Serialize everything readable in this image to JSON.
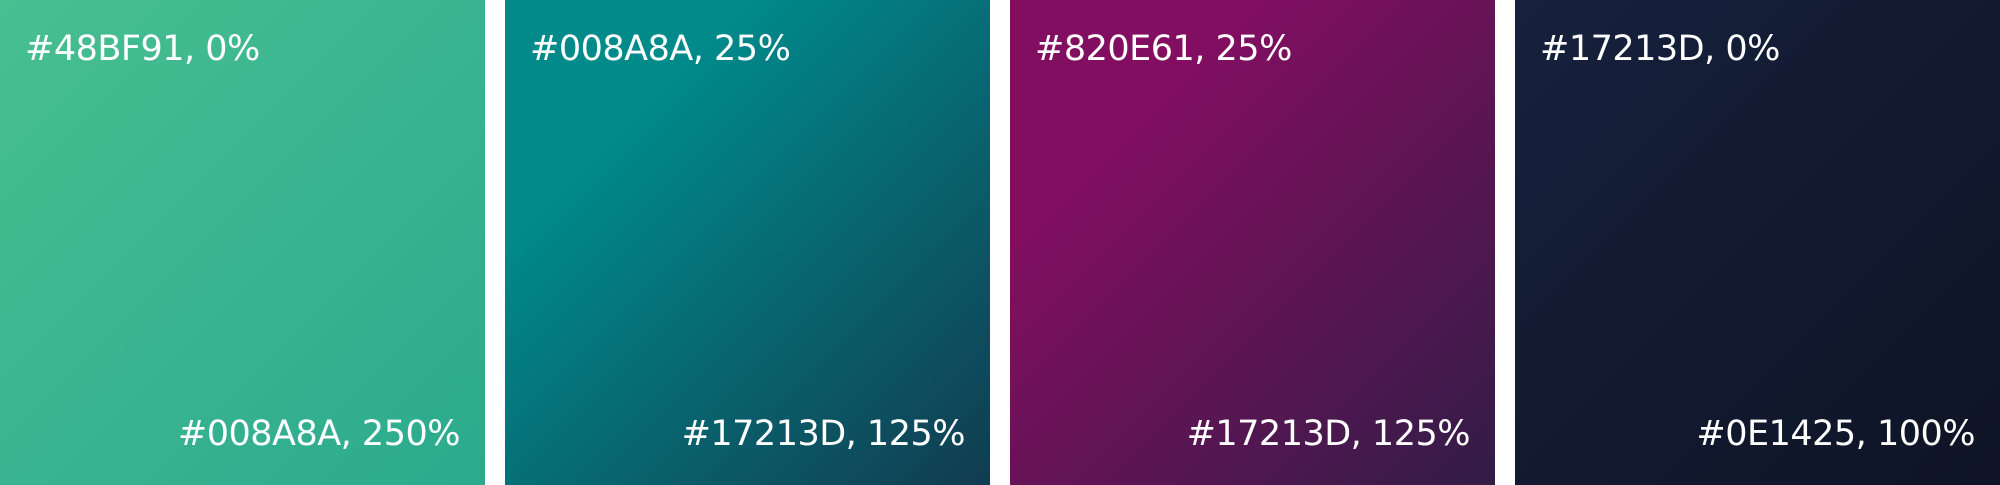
{
  "swatches": [
    {
      "start_label": "#48BF91, 0%",
      "end_label": "#008A8A, 250%",
      "stops": [
        {
          "color": "#48BF91",
          "position": "0%"
        },
        {
          "color": "#008A8A",
          "position": "250%"
        }
      ]
    },
    {
      "start_label": "#008A8A, 25%",
      "end_label": "#17213D, 125%",
      "stops": [
        {
          "color": "#008A8A",
          "position": "25%"
        },
        {
          "color": "#17213D",
          "position": "125%"
        }
      ]
    },
    {
      "start_label": "#820E61, 25%",
      "end_label": "#17213D, 125%",
      "stops": [
        {
          "color": "#820E61",
          "position": "25%"
        },
        {
          "color": "#17213D",
          "position": "125%"
        }
      ]
    },
    {
      "start_label": "#17213D, 0%",
      "end_label": "#0E1425, 100%",
      "stops": [
        {
          "color": "#17213D",
          "position": "0%"
        },
        {
          "color": "#0E1425",
          "position": "100%"
        }
      ]
    }
  ]
}
